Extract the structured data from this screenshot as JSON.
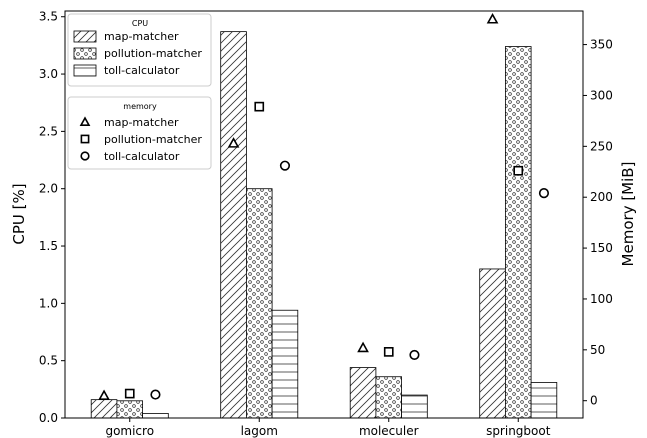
{
  "chart_data": {
    "type": "bar",
    "categories": [
      "gomicro",
      "lagom",
      "moleculer",
      "springboot"
    ],
    "y_left": {
      "label": "CPU [%]",
      "ylim": [
        0,
        3.55
      ],
      "ticks": [
        "0.0",
        "0.5",
        "1.0",
        "1.5",
        "2.0",
        "2.5",
        "3.0",
        "3.5"
      ]
    },
    "y_right": {
      "label": "Memory [MiB]",
      "ylim": [
        -17,
        383
      ],
      "ticks": [
        "0",
        "50",
        "100",
        "150",
        "200",
        "250",
        "300",
        "350"
      ]
    },
    "cpu_legend_title": "CPU",
    "memory_legend_title": "memory",
    "series_cpu": [
      {
        "name": "map-matcher",
        "pattern": "hatch-diagonal",
        "values": [
          0.16,
          3.37,
          0.44,
          1.3
        ]
      },
      {
        "name": "pollution-matcher",
        "pattern": "hatch-circles",
        "values": [
          0.15,
          2.0,
          0.36,
          3.24
        ]
      },
      {
        "name": "toll-calculator",
        "pattern": "hatch-horizontal",
        "values": [
          0.04,
          0.94,
          0.2,
          0.31
        ]
      }
    ],
    "series_memory": [
      {
        "name": "map-matcher",
        "marker": "triangle",
        "values": [
          5,
          253,
          52,
          375
        ]
      },
      {
        "name": "pollution-matcher",
        "marker": "square",
        "values": [
          7,
          289,
          48,
          226
        ]
      },
      {
        "name": "toll-calculator",
        "marker": "circle",
        "values": [
          6,
          231,
          45,
          204
        ]
      }
    ],
    "grid": false
  }
}
